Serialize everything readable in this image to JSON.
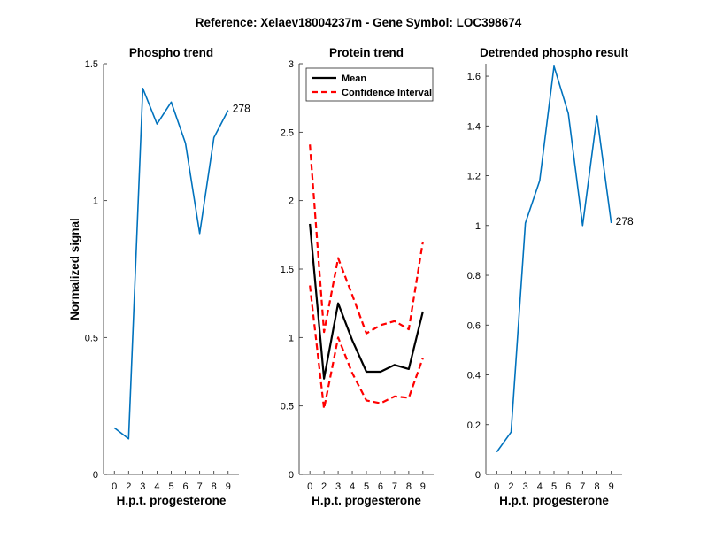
{
  "figure": {
    "suptitle": "Reference:  Xelaev18004237m - Gene Symbol:  LOC398674"
  },
  "chart_data": [
    {
      "type": "line",
      "title": "Phospho trend",
      "xlabel": "H.p.t. progesterone",
      "ylabel": "Normalized signal",
      "categories": [
        "0",
        "2",
        "3",
        "4",
        "5",
        "6",
        "7",
        "8",
        "9"
      ],
      "ylim": [
        0,
        1.5
      ],
      "yticks": [
        0,
        0.5,
        1,
        1.5
      ],
      "ytick_labels": [
        "0",
        "0.5",
        "1",
        "1.5"
      ],
      "series": [
        {
          "name": "phospho",
          "color": "#0072BD",
          "style": "solid",
          "values": [
            0.17,
            0.13,
            1.41,
            1.28,
            1.36,
            1.21,
            0.88,
            1.23,
            1.33
          ]
        }
      ],
      "annotation": "278"
    },
    {
      "type": "line",
      "title": "Protein trend",
      "xlabel": "H.p.t. progesterone",
      "ylabel": "",
      "categories": [
        "0",
        "2",
        "3",
        "4",
        "5",
        "6",
        "7",
        "8",
        "9"
      ],
      "ylim": [
        0,
        3
      ],
      "yticks": [
        0,
        0.5,
        1,
        1.5,
        2,
        2.5,
        3
      ],
      "ytick_labels": [
        "0",
        "0.5",
        "1",
        "1.5",
        "2",
        "2.5",
        "3"
      ],
      "legend": {
        "placement": "top-right",
        "entries": [
          "Mean",
          "Confidence Interval"
        ]
      },
      "series": [
        {
          "name": "Mean",
          "color": "#000000",
          "style": "solid",
          "values": [
            1.83,
            0.7,
            1.25,
            0.98,
            0.75,
            0.75,
            0.8,
            0.77,
            1.19
          ]
        },
        {
          "name": "Confidence Interval",
          "color": "#FF0000",
          "style": "dashed",
          "values": [
            2.41,
            1.04,
            1.58,
            1.31,
            1.03,
            1.09,
            1.12,
            1.06,
            1.7
          ]
        },
        {
          "name": "Confidence Interval (lower)",
          "color": "#FF0000",
          "style": "dashed",
          "values": [
            1.38,
            0.48,
            1.0,
            0.74,
            0.54,
            0.52,
            0.57,
            0.56,
            0.85
          ]
        }
      ]
    },
    {
      "type": "line",
      "title": "Detrended phospho result",
      "xlabel": "H.p.t. progesterone",
      "ylabel": "",
      "categories": [
        "0",
        "2",
        "3",
        "4",
        "5",
        "6",
        "7",
        "8",
        "9"
      ],
      "ylim": [
        0,
        1.65
      ],
      "yticks": [
        0,
        0.2,
        0.4,
        0.6,
        0.8,
        1,
        1.2,
        1.4,
        1.6
      ],
      "ytick_labels": [
        "0",
        "0.2",
        "0.4",
        "0.6",
        "0.8",
        "1",
        "1.2",
        "1.4",
        "1.6"
      ],
      "series": [
        {
          "name": "detrended",
          "color": "#0072BD",
          "style": "solid",
          "values": [
            0.09,
            0.17,
            1.01,
            1.18,
            1.64,
            1.45,
            1.0,
            1.44,
            1.01
          ]
        }
      ],
      "annotation": "278"
    }
  ]
}
